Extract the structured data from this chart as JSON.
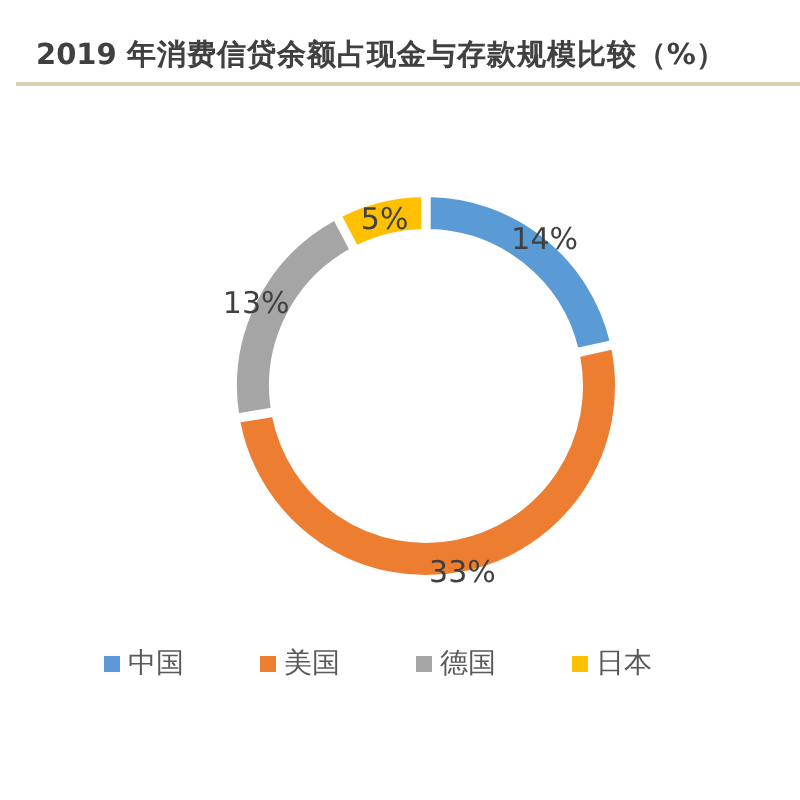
{
  "chart_data": {
    "type": "donut",
    "title": "2019 年消费信贷余额占现金与存款规模比较（%）",
    "categories": [
      "中国",
      "美国",
      "德国",
      "日本"
    ],
    "values": [
      14,
      33,
      13,
      5
    ],
    "colors": [
      "#5b9bd5",
      "#ed7d31",
      "#a5a5a5",
      "#ffc000"
    ],
    "value_labels": [
      "14%",
      "33%",
      "13%",
      "5%"
    ],
    "legend": "bottom"
  }
}
